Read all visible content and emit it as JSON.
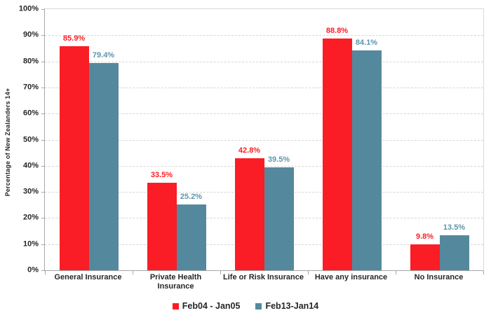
{
  "colors": {
    "series1": "#FB1D25",
    "series2": "#54899D",
    "series1_label": "#FB1D25",
    "series2_label": "#5E95AB",
    "grid": "#D6D6D6",
    "axis": "#A6A6A6",
    "frame": "#D9D9D9",
    "text": "#262626"
  },
  "chart_data": {
    "type": "bar",
    "title": "",
    "xlabel": "",
    "ylabel": "Percentage of New Zealanders 14+",
    "ylim": [
      0,
      100
    ],
    "ytick_step": 10,
    "ytick_labels": [
      "0%",
      "10%",
      "20%",
      "30%",
      "40%",
      "50%",
      "60%",
      "70%",
      "80%",
      "90%",
      "100%"
    ],
    "grid": "horizontal-dashed",
    "legend_position": "bottom-center",
    "categories": [
      "General Insurance",
      "Private Health\nInsurance",
      "Life or Risk Insurance",
      "Have any insurance",
      "No Insurance"
    ],
    "series": [
      {
        "name": "Feb04 - Jan05",
        "color": "#FB1D25",
        "label_color": "#FB1D25",
        "values": [
          85.9,
          33.5,
          42.8,
          88.8,
          9.8
        ],
        "data_labels": [
          "85.9%",
          "33.5%",
          "42.8%",
          "88.8%",
          "9.8%"
        ]
      },
      {
        "name": "Feb13-Jan14",
        "color": "#54899D",
        "label_color": "#5E95AB",
        "values": [
          79.4,
          25.2,
          39.5,
          84.1,
          13.5
        ],
        "data_labels": [
          "79.4%",
          "25.2%",
          "39.5%",
          "84.1%",
          "13.5%"
        ]
      }
    ]
  }
}
